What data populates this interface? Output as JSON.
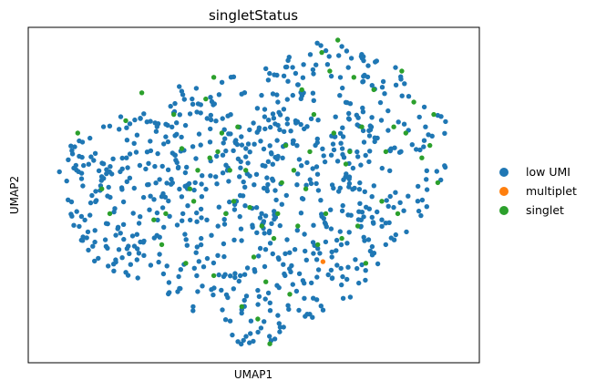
{
  "chart_data": {
    "type": "scatter",
    "title": "singletStatus",
    "xlabel": "UMAP1",
    "ylabel": "UMAP2",
    "xlim": [
      0,
      100
    ],
    "ylim": [
      0,
      100
    ],
    "grid": false,
    "ticks": false,
    "legend_position": "right",
    "series": [
      {
        "name": "low UMI",
        "color": "#1f77b4",
        "generate": {
          "count": 820,
          "seed": 7
        }
      },
      {
        "name": "multiplet",
        "color": "#ff7f0e",
        "points": [
          [
            67.3,
            28.5
          ]
        ]
      },
      {
        "name": "singlet",
        "color": "#2ca02c",
        "points": [
          [
            6,
            70
          ],
          [
            12,
            52
          ],
          [
            14,
            44
          ],
          [
            18,
            74
          ],
          [
            22,
            83
          ],
          [
            25,
            42
          ],
          [
            27,
            34
          ],
          [
            28,
            44
          ],
          [
            30,
            76
          ],
          [
            32,
            65
          ],
          [
            33,
            28
          ],
          [
            34,
            52
          ],
          [
            35,
            48
          ],
          [
            36,
            58
          ],
          [
            38,
            81
          ],
          [
            39,
            62
          ],
          [
            40,
            88
          ],
          [
            40,
            24
          ],
          [
            41,
            64
          ],
          [
            42,
            70
          ],
          [
            43,
            44
          ],
          [
            44,
            58
          ],
          [
            45,
            48
          ],
          [
            46,
            72
          ],
          [
            47,
            14
          ],
          [
            48,
            58
          ],
          [
            49,
            46
          ],
          [
            50,
            30
          ],
          [
            51,
            10
          ],
          [
            52,
            40
          ],
          [
            53,
            22
          ],
          [
            54,
            2
          ],
          [
            55,
            36
          ],
          [
            56,
            44
          ],
          [
            57,
            54
          ],
          [
            58,
            66
          ],
          [
            59,
            18
          ],
          [
            60,
            58
          ],
          [
            61,
            40
          ],
          [
            62,
            84
          ],
          [
            63,
            52
          ],
          [
            64,
            64
          ],
          [
            65,
            76
          ],
          [
            66,
            34
          ],
          [
            67,
            96
          ],
          [
            68,
            44
          ],
          [
            69,
            90
          ],
          [
            70,
            70
          ],
          [
            71,
            100
          ],
          [
            72,
            36
          ],
          [
            73,
            60
          ],
          [
            74,
            64
          ],
          [
            75,
            88
          ],
          [
            76,
            40
          ],
          [
            77,
            72
          ],
          [
            78,
            28
          ],
          [
            80,
            84
          ],
          [
            82,
            48
          ],
          [
            83,
            64
          ],
          [
            85,
            72
          ],
          [
            86,
            44
          ],
          [
            87,
            90
          ],
          [
            88,
            70
          ],
          [
            90,
            80
          ],
          [
            92,
            62
          ],
          [
            94,
            66
          ],
          [
            95,
            76
          ],
          [
            96,
            54
          ]
        ]
      }
    ]
  }
}
